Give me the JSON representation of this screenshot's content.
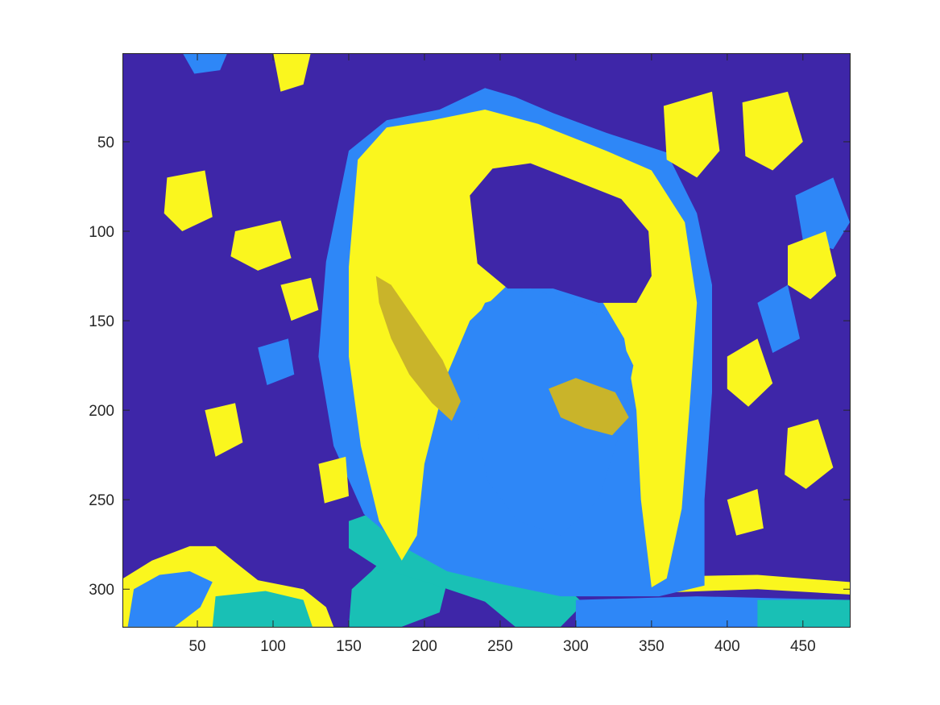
{
  "chart_data": {
    "type": "heatmap",
    "title": "",
    "xlabel": "",
    "ylabel": "",
    "image_width": 481,
    "image_height": 321,
    "xlim": [
      0.5,
      481.5
    ],
    "ylim": [
      0.5,
      321.5
    ],
    "y_direction": "reverse",
    "x_ticks": [
      50,
      100,
      150,
      200,
      250,
      300,
      350,
      400,
      450
    ],
    "y_ticks": [
      50,
      100,
      150,
      200,
      250,
      300
    ],
    "x_tick_labels": [
      "50",
      "100",
      "150",
      "200",
      "250",
      "300",
      "350",
      "400",
      "450"
    ],
    "y_tick_labels": [
      "50",
      "100",
      "150",
      "200",
      "250",
      "300"
    ],
    "grid": false,
    "colorbar": false,
    "colormap": [
      "#3e26a8",
      "#2e87f7",
      "#19c0b5",
      "#c9b42a",
      "#faf61e"
    ],
    "class_levels": [
      1,
      2,
      3,
      4,
      5
    ],
    "background_class": 1,
    "regions": [
      {
        "class": 3,
        "points": [
          [
            150,
            321
          ],
          [
            152,
            300
          ],
          [
            165,
            290
          ],
          [
            175,
            281
          ],
          [
            190,
            279
          ],
          [
            205,
            286
          ],
          [
            215,
            296
          ],
          [
            210,
            313
          ],
          [
            185,
            321
          ]
        ]
      },
      {
        "class": 5,
        "points": [
          [
            1,
            321
          ],
          [
            1,
            294
          ],
          [
            20,
            284
          ],
          [
            45,
            276
          ],
          [
            62,
            276
          ],
          [
            75,
            285
          ],
          [
            90,
            295
          ],
          [
            120,
            300
          ],
          [
            135,
            310
          ],
          [
            140,
            321
          ]
        ]
      },
      {
        "class": 2,
        "points": [
          [
            4,
            321
          ],
          [
            8,
            300
          ],
          [
            25,
            292
          ],
          [
            45,
            290
          ],
          [
            60,
            296
          ],
          [
            52,
            310
          ],
          [
            35,
            321
          ]
        ]
      },
      {
        "class": 3,
        "points": [
          [
            60,
            321
          ],
          [
            62,
            304
          ],
          [
            95,
            301
          ],
          [
            120,
            306
          ],
          [
            126,
            321
          ]
        ]
      },
      {
        "class": 3,
        "points": [
          [
            150,
            262
          ],
          [
            170,
            256
          ],
          [
            210,
            268
          ],
          [
            250,
            283
          ],
          [
            290,
            296
          ],
          [
            305,
            308
          ],
          [
            290,
            321
          ],
          [
            260,
            321
          ],
          [
            240,
            307
          ],
          [
            205,
            297
          ],
          [
            170,
            288
          ],
          [
            150,
            277
          ]
        ]
      },
      {
        "class": 5,
        "points": [
          [
            355,
            293
          ],
          [
            420,
            292
          ],
          [
            481,
            296
          ],
          [
            481,
            303
          ],
          [
            420,
            300
          ],
          [
            355,
            302
          ]
        ]
      },
      {
        "class": 2,
        "points": [
          [
            300,
            306
          ],
          [
            380,
            304
          ],
          [
            481,
            306
          ],
          [
            481,
            321
          ],
          [
            300,
            321
          ]
        ]
      },
      {
        "class": 3,
        "points": [
          [
            420,
            306
          ],
          [
            481,
            306
          ],
          [
            481,
            321
          ],
          [
            420,
            321
          ]
        ]
      },
      {
        "class": 2,
        "points": [
          [
            135,
            117
          ],
          [
            150,
            55
          ],
          [
            175,
            38
          ],
          [
            210,
            32
          ],
          [
            240,
            20
          ],
          [
            260,
            25
          ],
          [
            285,
            34
          ],
          [
            320,
            45
          ],
          [
            360,
            56
          ],
          [
            380,
            90
          ],
          [
            390,
            130
          ],
          [
            390,
            190
          ],
          [
            385,
            250
          ],
          [
            385,
            298
          ],
          [
            355,
            304
          ],
          [
            290,
            304
          ],
          [
            250,
            297
          ],
          [
            215,
            290
          ],
          [
            185,
            276
          ],
          [
            160,
            258
          ],
          [
            140,
            220
          ],
          [
            130,
            170
          ]
        ]
      },
      {
        "class": 5,
        "points": [
          [
            150,
            120
          ],
          [
            156,
            60
          ],
          [
            175,
            42
          ],
          [
            205,
            38
          ],
          [
            240,
            32
          ],
          [
            275,
            40
          ],
          [
            320,
            55
          ],
          [
            350,
            66
          ],
          [
            372,
            95
          ],
          [
            380,
            140
          ],
          [
            375,
            200
          ],
          [
            370,
            255
          ],
          [
            360,
            294
          ],
          [
            350,
            299
          ],
          [
            343,
            250
          ],
          [
            340,
            200
          ],
          [
            332,
            160
          ],
          [
            318,
            140
          ],
          [
            290,
            130
          ],
          [
            255,
            130
          ],
          [
            230,
            150
          ],
          [
            215,
            180
          ],
          [
            200,
            230
          ],
          [
            195,
            270
          ],
          [
            185,
            284
          ],
          [
            170,
            262
          ],
          [
            158,
            220
          ],
          [
            150,
            170
          ]
        ]
      },
      {
        "class": 1,
        "points": [
          [
            230,
            80
          ],
          [
            245,
            65
          ],
          [
            270,
            62
          ],
          [
            300,
            72
          ],
          [
            330,
            82
          ],
          [
            348,
            100
          ],
          [
            350,
            125
          ],
          [
            340,
            140
          ],
          [
            315,
            140
          ],
          [
            285,
            132
          ],
          [
            255,
            132
          ],
          [
            235,
            118
          ]
        ]
      },
      {
        "class": 2,
        "points": [
          [
            228,
            160
          ],
          [
            240,
            140
          ],
          [
            270,
            132
          ],
          [
            300,
            140
          ],
          [
            325,
            152
          ],
          [
            338,
            175
          ],
          [
            330,
            210
          ],
          [
            315,
            250
          ],
          [
            290,
            270
          ],
          [
            262,
            262
          ],
          [
            242,
            240
          ],
          [
            232,
            200
          ]
        ]
      },
      {
        "class": 4,
        "points": [
          [
            168,
            125
          ],
          [
            178,
            130
          ],
          [
            196,
            152
          ],
          [
            212,
            172
          ],
          [
            224,
            195
          ],
          [
            218,
            206
          ],
          [
            205,
            196
          ],
          [
            190,
            180
          ],
          [
            178,
            160
          ],
          [
            170,
            140
          ]
        ]
      },
      {
        "class": 4,
        "points": [
          [
            282,
            188
          ],
          [
            300,
            182
          ],
          [
            326,
            190
          ],
          [
            335,
            204
          ],
          [
            324,
            214
          ],
          [
            306,
            210
          ],
          [
            290,
            204
          ]
        ]
      },
      {
        "class": 5,
        "points": [
          [
            100,
            0
          ],
          [
            125,
            0
          ],
          [
            120,
            18
          ],
          [
            105,
            22
          ]
        ]
      },
      {
        "class": 2,
        "points": [
          [
            40,
            0
          ],
          [
            70,
            0
          ],
          [
            65,
            10
          ],
          [
            48,
            12
          ]
        ]
      },
      {
        "class": 5,
        "points": [
          [
            358,
            30
          ],
          [
            390,
            22
          ],
          [
            395,
            55
          ],
          [
            380,
            70
          ],
          [
            360,
            60
          ]
        ]
      },
      {
        "class": 5,
        "points": [
          [
            410,
            28
          ],
          [
            440,
            22
          ],
          [
            450,
            50
          ],
          [
            430,
            66
          ],
          [
            412,
            58
          ]
        ]
      },
      {
        "class": 2,
        "points": [
          [
            445,
            80
          ],
          [
            470,
            70
          ],
          [
            481,
            95
          ],
          [
            470,
            110
          ],
          [
            450,
            105
          ]
        ]
      },
      {
        "class": 5,
        "points": [
          [
            440,
            108
          ],
          [
            465,
            100
          ],
          [
            472,
            125
          ],
          [
            455,
            138
          ],
          [
            440,
            130
          ]
        ]
      },
      {
        "class": 5,
        "points": [
          [
            30,
            70
          ],
          [
            55,
            66
          ],
          [
            60,
            92
          ],
          [
            40,
            100
          ],
          [
            28,
            90
          ]
        ]
      },
      {
        "class": 5,
        "points": [
          [
            75,
            100
          ],
          [
            105,
            94
          ],
          [
            112,
            115
          ],
          [
            90,
            122
          ],
          [
            72,
            114
          ]
        ]
      },
      {
        "class": 5,
        "points": [
          [
            105,
            130
          ],
          [
            125,
            126
          ],
          [
            130,
            144
          ],
          [
            112,
            150
          ]
        ]
      },
      {
        "class": 5,
        "points": [
          [
            400,
            170
          ],
          [
            420,
            160
          ],
          [
            430,
            185
          ],
          [
            414,
            198
          ],
          [
            400,
            188
          ]
        ]
      },
      {
        "class": 5,
        "points": [
          [
            440,
            210
          ],
          [
            460,
            205
          ],
          [
            470,
            232
          ],
          [
            452,
            244
          ],
          [
            438,
            236
          ]
        ]
      },
      {
        "class": 5,
        "points": [
          [
            55,
            200
          ],
          [
            75,
            196
          ],
          [
            80,
            218
          ],
          [
            62,
            226
          ]
        ]
      },
      {
        "class": 5,
        "points": [
          [
            130,
            230
          ],
          [
            148,
            226
          ],
          [
            150,
            248
          ],
          [
            134,
            252
          ]
        ]
      },
      {
        "class": 5,
        "points": [
          [
            400,
            250
          ],
          [
            420,
            244
          ],
          [
            424,
            266
          ],
          [
            406,
            270
          ]
        ]
      },
      {
        "class": 2,
        "points": [
          [
            420,
            140
          ],
          [
            440,
            130
          ],
          [
            448,
            160
          ],
          [
            430,
            168
          ]
        ]
      },
      {
        "class": 2,
        "points": [
          [
            90,
            165
          ],
          [
            110,
            160
          ],
          [
            114,
            180
          ],
          [
            96,
            186
          ]
        ]
      }
    ]
  }
}
